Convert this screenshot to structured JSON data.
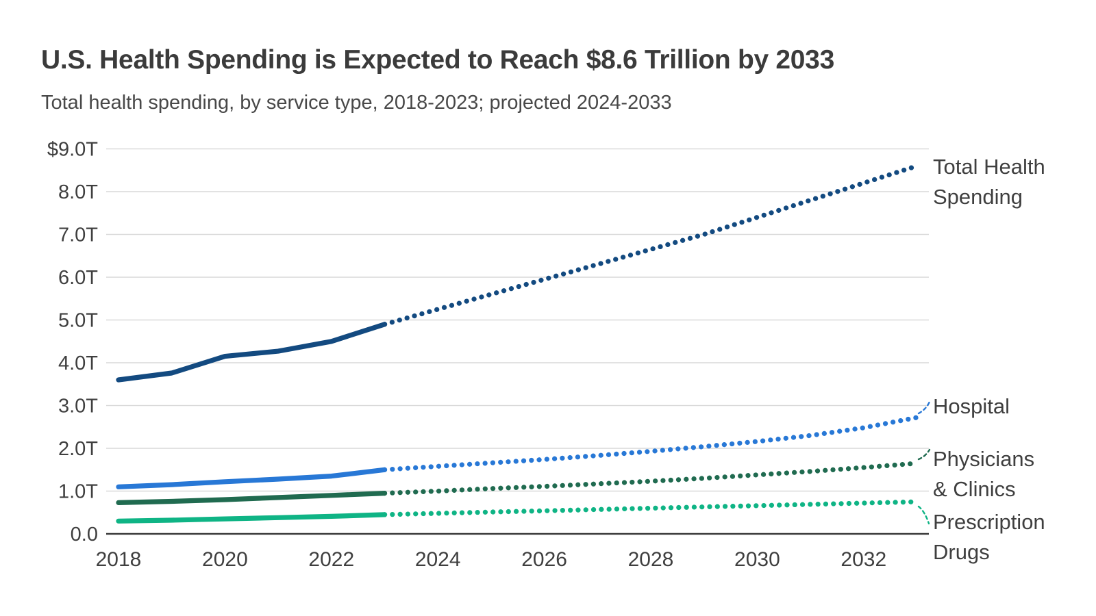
{
  "header": {
    "title": "U.S. Health Spending is Expected to Reach $8.6 Trillion by 2033",
    "subtitle": "Total health spending, by service type, 2018-2023; projected 2024-2033"
  },
  "chart_data": {
    "type": "line",
    "title": "U.S. Health Spending is Expected to Reach $8.6 Trillion by 2033",
    "subtitle": "Total health spending, by service type, 2018-2023; projected 2024-2033",
    "xlabel": "",
    "ylabel": "",
    "units": "trillions USD",
    "grid": true,
    "legend_position": "right-of-lines",
    "ylim": [
      0,
      9
    ],
    "x": [
      2018,
      2019,
      2020,
      2021,
      2022,
      2023,
      2024,
      2025,
      2026,
      2027,
      2028,
      2029,
      2030,
      2031,
      2032,
      2033
    ],
    "solid_until_year": 2023,
    "x_ticks": [
      2018,
      2020,
      2022,
      2024,
      2026,
      2028,
      2030,
      2032
    ],
    "y_tick_values": [
      9,
      8,
      7,
      6,
      5,
      4,
      3,
      2,
      1,
      0
    ],
    "y_ticks": [
      "$9.0T",
      "8.0T",
      "7.0T",
      "6.0T",
      "5.0T",
      "4.0T",
      "3.0T",
      "2.0T",
      "1.0T",
      "0.0"
    ],
    "series": [
      {
        "name": "Total Health Spending",
        "label_lines": [
          "Total Health",
          "Spending"
        ],
        "color": "#134a80",
        "values": [
          3.6,
          3.76,
          4.15,
          4.27,
          4.5,
          4.9,
          5.25,
          5.6,
          5.95,
          6.3,
          6.65,
          7.0,
          7.4,
          7.8,
          8.2,
          8.6
        ]
      },
      {
        "name": "Hospital",
        "label_lines": [
          "Hospital"
        ],
        "color": "#2878d6",
        "values": [
          1.1,
          1.15,
          1.22,
          1.28,
          1.35,
          1.5,
          1.58,
          1.66,
          1.74,
          1.83,
          1.93,
          2.04,
          2.16,
          2.3,
          2.48,
          2.72
        ]
      },
      {
        "name": "Physicians & Clinics",
        "label_lines": [
          "Physicians",
          "& Clinics"
        ],
        "color": "#206b50",
        "values": [
          0.73,
          0.76,
          0.8,
          0.85,
          0.9,
          0.95,
          1.0,
          1.06,
          1.11,
          1.17,
          1.23,
          1.3,
          1.38,
          1.46,
          1.55,
          1.65
        ]
      },
      {
        "name": "Prescription Drugs",
        "label_lines": [
          "Prescription",
          "Drugs"
        ],
        "color": "#0fb485",
        "values": [
          0.3,
          0.32,
          0.35,
          0.38,
          0.41,
          0.45,
          0.48,
          0.51,
          0.54,
          0.57,
          0.6,
          0.63,
          0.66,
          0.69,
          0.72,
          0.75
        ]
      }
    ]
  }
}
